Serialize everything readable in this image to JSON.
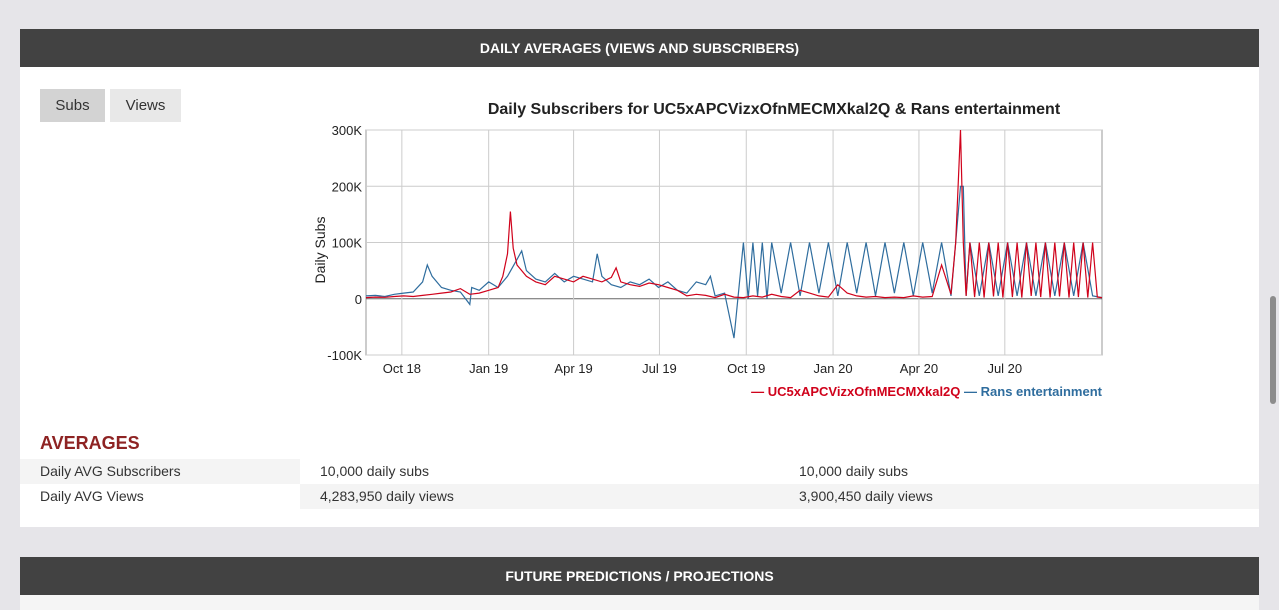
{
  "sections": {
    "daily_header": "DAILY AVERAGES (VIEWS AND SUBSCRIBERS)",
    "future_header": "FUTURE PREDICTIONS / PROJECTIONS"
  },
  "toggle": {
    "subs_label": "Subs",
    "views_label": "Views",
    "active": "Subs"
  },
  "averages": {
    "title": "AVERAGES",
    "rows": [
      {
        "label": "Daily AVG Subscribers",
        "value1": "10,000 daily subs",
        "value2": "10,000 daily subs"
      },
      {
        "label": "Daily AVG Views",
        "value1": "4,283,950 daily views",
        "value2": "3,900,450 daily views"
      }
    ]
  },
  "colors": {
    "series1": "#d0021b",
    "series2": "#2f6d9e",
    "header_bg": "#424242",
    "accent": "#8e2323"
  },
  "chart_data": {
    "type": "line",
    "title": "Daily Subscribers for UC5xAPCVizxOfnMECMXkal2Q & Rans entertainment",
    "xlabel": "",
    "ylabel": "Daily Subs",
    "ylim": [
      -100000,
      300000
    ],
    "yticks": [
      "300K",
      "200K",
      "100K",
      "0",
      "-100K"
    ],
    "ytick_values": [
      300000,
      200000,
      100000,
      0,
      -100000
    ],
    "xlim_days": [
      0,
      780
    ],
    "xticks": [
      "Oct 18",
      "Jan 19",
      "Apr 19",
      "Jul 19",
      "Oct 19",
      "Jan 20",
      "Apr 20",
      "Jul 20"
    ],
    "xtick_days": [
      38,
      130,
      220,
      311,
      403,
      495,
      586,
      677
    ],
    "legend_position": "bottom-right",
    "series": [
      {
        "name": "UC5xAPCVizxOfnMECMXkal2Q",
        "color": "#d0021b",
        "x": [
          0,
          10,
          20,
          30,
          40,
          50,
          60,
          70,
          80,
          90,
          100,
          110,
          120,
          130,
          140,
          145,
          150,
          153,
          156,
          160,
          165,
          170,
          175,
          180,
          190,
          200,
          210,
          220,
          230,
          240,
          250,
          260,
          265,
          270,
          280,
          290,
          300,
          310,
          320,
          330,
          340,
          350,
          360,
          370,
          380,
          390,
          400,
          410,
          420,
          430,
          440,
          450,
          460,
          470,
          480,
          490,
          500,
          510,
          520,
          530,
          540,
          550,
          560,
          570,
          580,
          590,
          600,
          610,
          620,
          625,
          630,
          633,
          636,
          640,
          645,
          650,
          655,
          660,
          665,
          670,
          675,
          680,
          685,
          690,
          695,
          700,
          705,
          710,
          715,
          720,
          725,
          730,
          735,
          740,
          745,
          750,
          755,
          760,
          765,
          770,
          775,
          780
        ],
        "y": [
          2000,
          3000,
          2500,
          4000,
          5000,
          4000,
          6000,
          8000,
          10000,
          12000,
          18000,
          8000,
          10000,
          15000,
          20000,
          40000,
          80000,
          155000,
          90000,
          60000,
          50000,
          40000,
          35000,
          30000,
          25000,
          40000,
          35000,
          30000,
          40000,
          35000,
          30000,
          38000,
          55000,
          30000,
          25000,
          22000,
          28000,
          25000,
          20000,
          15000,
          5000,
          8000,
          6000,
          2000,
          8000,
          3000,
          2000,
          5000,
          3000,
          8000,
          4000,
          2000,
          15000,
          10000,
          5000,
          3000,
          25000,
          10000,
          5000,
          3000,
          4000,
          2000,
          3000,
          2000,
          5000,
          3000,
          4000,
          60000,
          8000,
          100000,
          300000,
          100000,
          5000,
          100000,
          3000,
          100000,
          2000,
          100000,
          4000,
          100000,
          2000,
          100000,
          3000,
          100000,
          2000,
          100000,
          5000,
          100000,
          3000,
          100000,
          2000,
          100000,
          4000,
          100000,
          2000,
          100000,
          3000,
          100000,
          2000,
          100000,
          3000,
          2000
        ]
      },
      {
        "name": "Rans entertainment",
        "color": "#2f6d9e",
        "x": [
          0,
          10,
          20,
          30,
          40,
          50,
          60,
          65,
          70,
          80,
          90,
          100,
          110,
          112,
          120,
          130,
          140,
          150,
          160,
          165,
          170,
          180,
          190,
          200,
          210,
          220,
          230,
          240,
          245,
          250,
          260,
          270,
          280,
          290,
          300,
          310,
          320,
          330,
          340,
          350,
          360,
          365,
          370,
          380,
          390,
          400,
          405,
          410,
          415,
          420,
          425,
          430,
          440,
          450,
          460,
          470,
          480,
          490,
          500,
          510,
          520,
          530,
          540,
          550,
          560,
          570,
          580,
          590,
          600,
          610,
          620,
          625,
          630,
          633,
          636,
          640,
          650,
          660,
          670,
          680,
          690,
          700,
          710,
          720,
          730,
          740,
          750,
          760,
          770,
          780
        ],
        "y": [
          5000,
          6000,
          4000,
          8000,
          10000,
          12000,
          30000,
          60000,
          40000,
          20000,
          15000,
          12000,
          -10000,
          20000,
          15000,
          30000,
          20000,
          40000,
          70000,
          85000,
          50000,
          35000,
          30000,
          45000,
          30000,
          40000,
          35000,
          30000,
          80000,
          40000,
          25000,
          20000,
          30000,
          25000,
          35000,
          20000,
          30000,
          15000,
          10000,
          30000,
          25000,
          40000,
          5000,
          10000,
          -70000,
          100000,
          0,
          100000,
          5000,
          100000,
          0,
          100000,
          10000,
          100000,
          5000,
          100000,
          10000,
          100000,
          5000,
          100000,
          10000,
          100000,
          5000,
          100000,
          10000,
          100000,
          5000,
          100000,
          10000,
          100000,
          5000,
          100000,
          200000,
          200000,
          5000,
          100000,
          5000,
          100000,
          5000,
          100000,
          5000,
          100000,
          5000,
          100000,
          5000,
          100000,
          5000,
          100000,
          5000,
          2000
        ]
      }
    ]
  }
}
